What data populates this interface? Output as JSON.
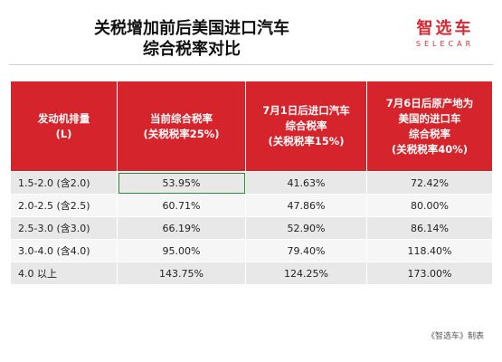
{
  "title": {
    "line1": "关税增加前后美国进口汽车",
    "line2": "综合税率对比"
  },
  "logo": {
    "cn": "智选车",
    "en": "SELECAR"
  },
  "table": {
    "headers": [
      {
        "line1": "发动机排量",
        "line2": "(L)",
        "line3": ""
      },
      {
        "line1": "当前综合税率",
        "line2": "(关税税率25%)",
        "line3": ""
      },
      {
        "line1": "7月1日后进口汽车",
        "line2": "综合税率",
        "line3": "(关税税率15%)"
      },
      {
        "line1": "7月6日后原产地为",
        "line2": "美国的进口车",
        "line3": "综合税率",
        "line4": "(关税税率40%)"
      }
    ],
    "rows": [
      {
        "range": "1.5-2.0 (含2.0)",
        "current": "53.95%",
        "jul1": "41.63%",
        "jul6": "72.42%"
      },
      {
        "range": "2.0-2.5 (含2.5)",
        "current": "60.71%",
        "jul1": "47.86%",
        "jul6": "80.00%"
      },
      {
        "range": "2.5-3.0 (含3.0)",
        "current": "66.19%",
        "jul1": "52.90%",
        "jul6": "86.14%"
      },
      {
        "range": "3.0-4.0 (含4.0)",
        "current": "95.00%",
        "jul1": "79.40%",
        "jul6": "118.40%"
      },
      {
        "range": "4.0 以上",
        "current": "143.75%",
        "jul1": "124.25%",
        "jul6": "173.00%"
      }
    ]
  },
  "source": "《智选车》制表",
  "colors": {
    "header_bg": "#d5242b",
    "logo": "#d62b35"
  }
}
